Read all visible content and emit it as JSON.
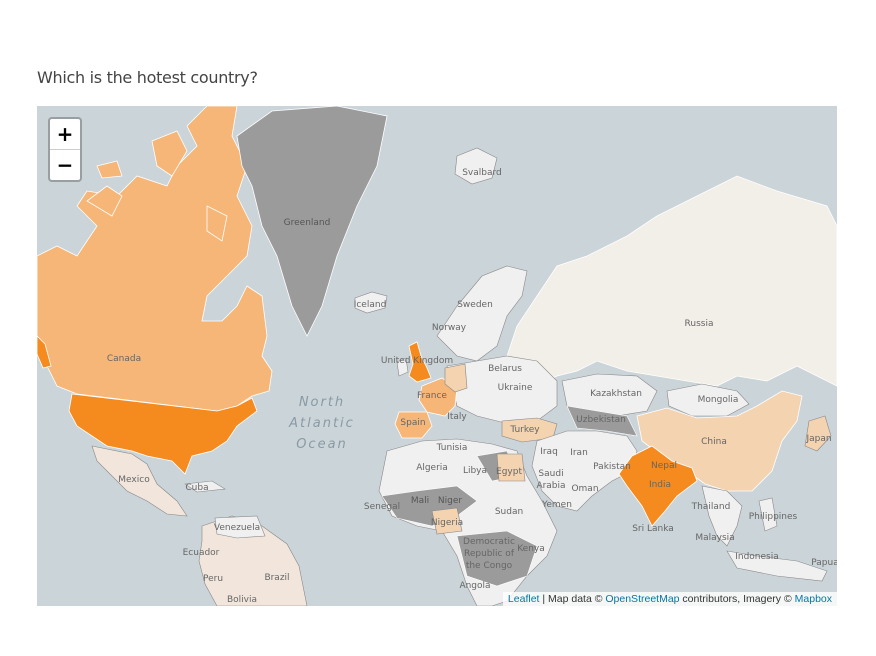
{
  "question": "Which is the hotest country?",
  "zoom": {
    "in_label": "+",
    "out_label": "−"
  },
  "attribution": {
    "leaflet": "Leaflet",
    "separator": " | Map data © ",
    "osm": "OpenStreetMap",
    "middle": " contributors, Imagery © ",
    "mapbox": "Mapbox"
  },
  "ocean_label": [
    "North",
    "Atlantic",
    "Ocean"
  ],
  "colors": {
    "hottest": "#f58a1f",
    "hot": "#f6b677",
    "warm": "#f3d3b0",
    "mild": "#f2e6dc",
    "neutral": "#f0f0f0",
    "nodata": "#9b9b9b",
    "water": "#cbd4d8"
  },
  "country_labels": {
    "greenland": "Greenland",
    "svalbard": "Svalbard",
    "iceland": "Iceland",
    "sweden": "Sweden",
    "norway": "Norway",
    "russia": "Russia",
    "canada": "Canada",
    "united_kingdom": "United Kingdom",
    "belarus": "Belarus",
    "ukraine": "Ukraine",
    "france": "France",
    "spain": "Spain",
    "italy": "Italy",
    "turkey": "Turkey",
    "kazakhstan": "Kazakhstan",
    "mongolia": "Mongolia",
    "uzbekistan": "Uzbekistan",
    "china": "China",
    "japan": "Japan",
    "tunisia": "Tunisia",
    "iraq": "Iraq",
    "iran": "Iran",
    "algeria": "Algeria",
    "libya": "Libya",
    "egypt": "Egypt",
    "saudi_arabia": "Saudi Arabia",
    "pakistan": "Pakistan",
    "india": "India",
    "nepal": "Nepal",
    "mexico": "Mexico",
    "cuba": "Cuba",
    "oman": "Oman",
    "yemen": "Yemen",
    "mali": "Mali",
    "niger": "Niger",
    "senegal": "Senegal",
    "nigeria": "Nigeria",
    "sudan": "Sudan",
    "thailand": "Thailand",
    "philippines": "Philippines",
    "sri_lanka": "Sri Lanka",
    "malaysia": "Malaysia",
    "indonesia": "Indonesia",
    "venezuela": "Venezuela",
    "ecuador": "Ecuador",
    "peru": "Peru",
    "brazil": "Brazil",
    "bolivia": "Bolivia",
    "drc": "Democratic Republic of the Congo",
    "kenya": "Kenya",
    "angola": "Angola",
    "papua": "Papua"
  }
}
